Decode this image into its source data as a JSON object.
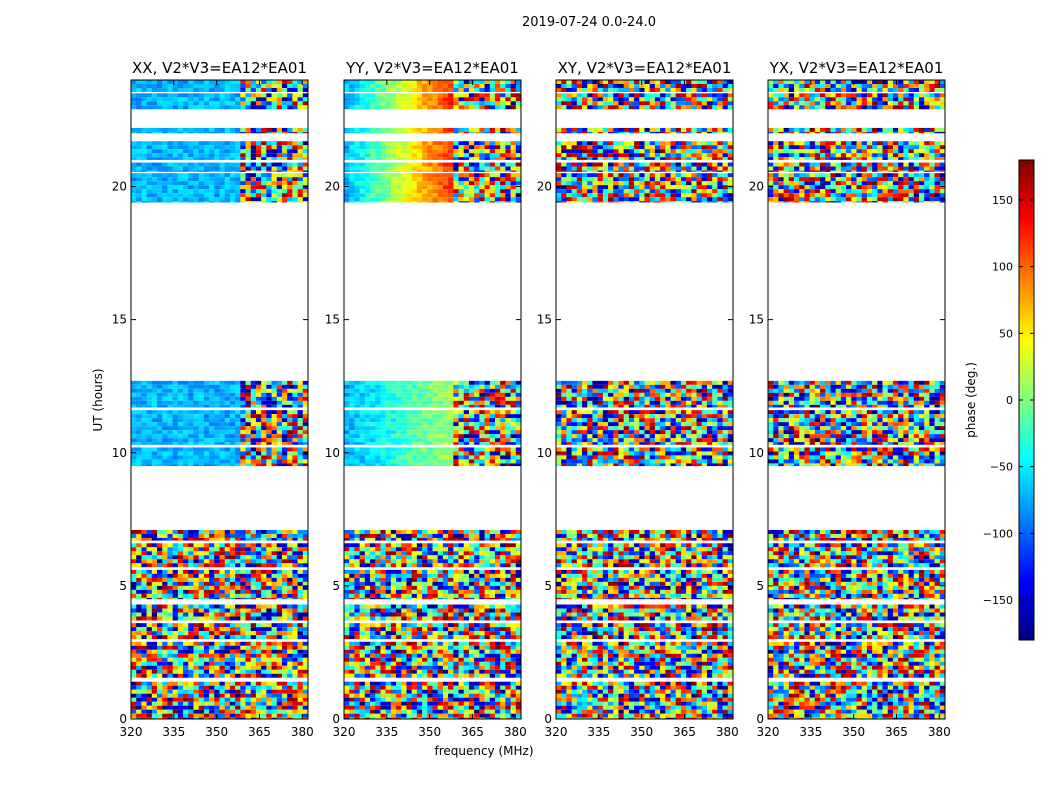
{
  "figure": {
    "suptitle": "2019-07-24 0.0-24.0",
    "xlabel": "frequency (MHz)",
    "ylabel": "UT (hours)"
  },
  "chart_data": {
    "type": "heatmap",
    "x_ticks": [
      320,
      335,
      350,
      365,
      380
    ],
    "xlim": [
      320,
      382
    ],
    "y_ticks": [
      0,
      5,
      10,
      15,
      20
    ],
    "ylim": [
      0,
      24
    ],
    "data_coverage_hours": [
      [
        0.0,
        1.4
      ],
      [
        1.55,
        2.9
      ],
      [
        3.0,
        3.6
      ],
      [
        3.7,
        4.3
      ],
      [
        4.5,
        5.6
      ],
      [
        5.7,
        6.6
      ],
      [
        6.7,
        7.1
      ],
      [
        9.5,
        10.2
      ],
      [
        10.3,
        11.6
      ],
      [
        11.7,
        12.7
      ],
      [
        19.4,
        20.5
      ],
      [
        20.55,
        20.9
      ],
      [
        21.0,
        21.7
      ],
      [
        22.0,
        22.2
      ],
      [
        22.9,
        23.5
      ],
      [
        23.55,
        24.0
      ]
    ],
    "panels": [
      {
        "title": "XX, V2*V3=EA12*EA01"
      },
      {
        "title": "YY, V2*V3=EA12*EA01"
      },
      {
        "title": "XY, V2*V3=EA12*EA01"
      },
      {
        "title": "YX, V2*V3=EA12*EA01"
      }
    ],
    "colorbar": {
      "label": "phase (deg.)",
      "range": [
        -180,
        180
      ],
      "ticks": [
        -150,
        -100,
        -50,
        0,
        50,
        100,
        150
      ],
      "tick_labels": [
        "−150",
        "−100",
        "−50",
        "0",
        "50",
        "100",
        "150"
      ],
      "colormap": [
        "#00007f",
        "#0000ff",
        "#007fff",
        "#00ffff",
        "#7fff7f",
        "#ffff00",
        "#ff7f00",
        "#ff0000",
        "#7f0000"
      ]
    }
  }
}
